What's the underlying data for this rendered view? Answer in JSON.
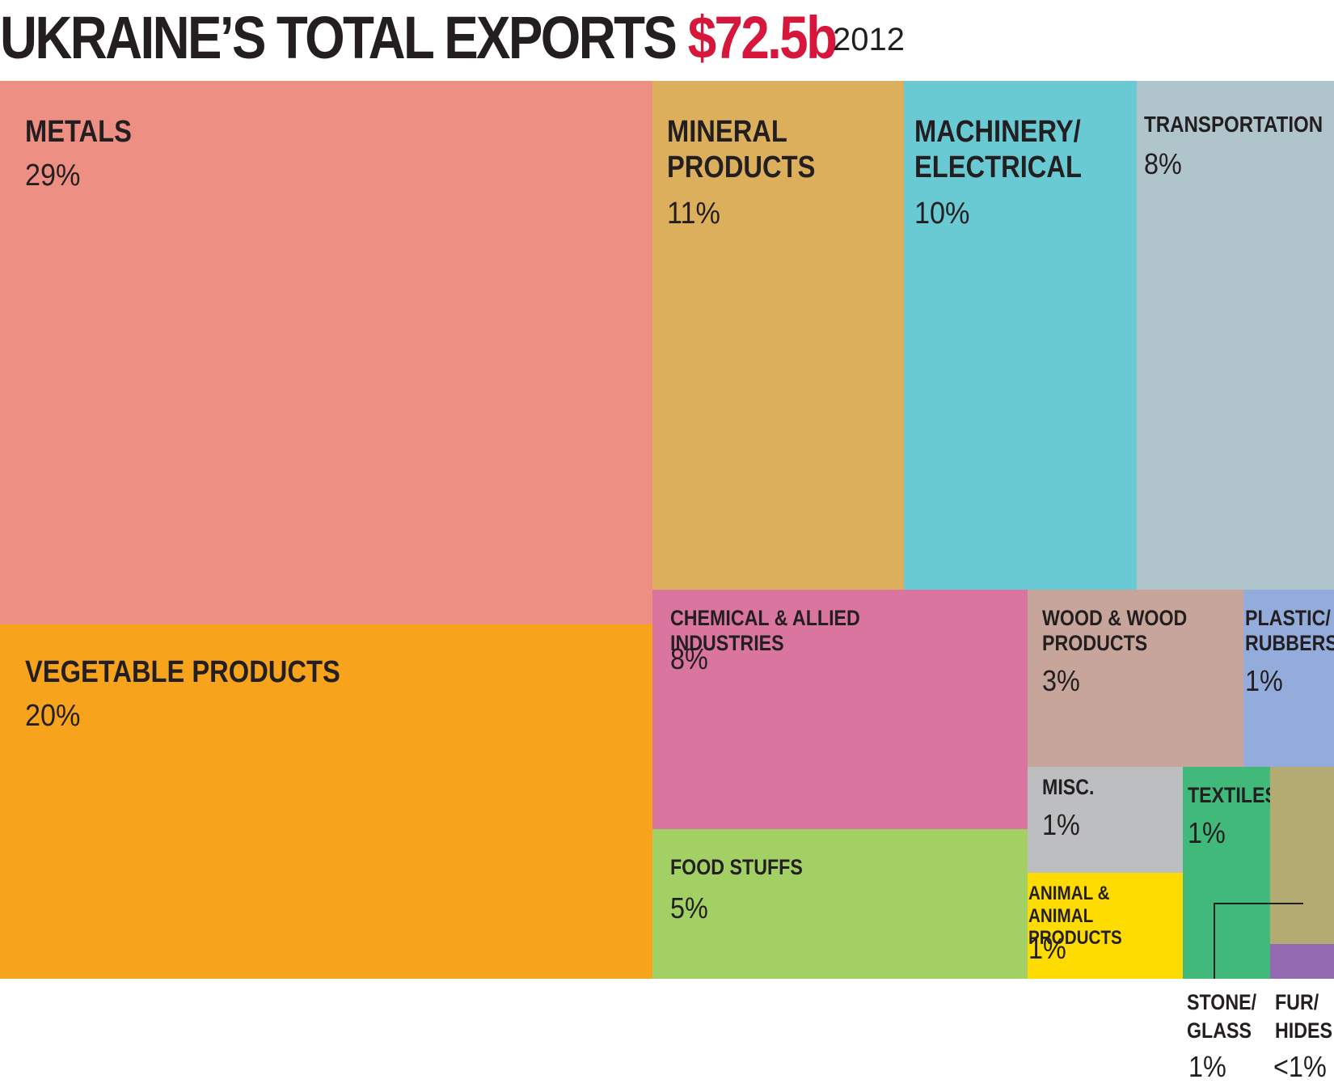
{
  "title": {
    "main": "UKRAINE’S TOTAL EXPORTS",
    "total": "$72.5b",
    "year": "2012"
  },
  "colors": {
    "title_accent": "#d7163b",
    "text": "#231f20"
  },
  "chart_data": {
    "type": "treemap",
    "title": "UKRAINE’S TOTAL EXPORTS $72.5b 2012",
    "unit": "% of total exports",
    "items": [
      {
        "id": "metals",
        "label": "METALS",
        "pct_label": "29%",
        "value": 29,
        "color": "#ed8f83"
      },
      {
        "id": "vegetable-products",
        "label": "VEGETABLE PRODUCTS",
        "pct_label": "20%",
        "value": 20,
        "color": "#f7a41c"
      },
      {
        "id": "mineral-products",
        "label": "MINERAL\nPRODUCTS",
        "pct_label": "11%",
        "value": 11,
        "color": "#dcaf5c"
      },
      {
        "id": "machinery-electrical",
        "label": "MACHINERY/\nELECTRICAL",
        "pct_label": "10%",
        "value": 10,
        "color": "#69cad3"
      },
      {
        "id": "transportation",
        "label": "TRANSPORTATION",
        "pct_label": "8%",
        "value": 8,
        "color": "#b0c4cc"
      },
      {
        "id": "chemical-allied-industries",
        "label": "CHEMICAL & ALLIED INDUSTRIES",
        "pct_label": "8%",
        "value": 8,
        "color": "#da75a0"
      },
      {
        "id": "food-stuffs",
        "label": "FOOD STUFFS",
        "pct_label": "5%",
        "value": 5,
        "color": "#a3d064"
      },
      {
        "id": "wood-products",
        "label": "WOOD & WOOD\nPRODUCTS",
        "pct_label": "3%",
        "value": 3,
        "color": "#c7a59a"
      },
      {
        "id": "plastic-rubbers",
        "label": "PLASTIC/\nRUBBERS",
        "pct_label": "1%",
        "value": 1,
        "color": "#93acdb"
      },
      {
        "id": "misc",
        "label": "MISC.",
        "pct_label": "1%",
        "value": 1,
        "color": "#bcbec0"
      },
      {
        "id": "animal-products",
        "label": "ANIMAL &\nANIMAL PRODUCTS",
        "pct_label": "1%",
        "value": 1,
        "color": "#ffdc00"
      },
      {
        "id": "textiles",
        "label": "TEXTILES",
        "pct_label": "1%",
        "value": 1,
        "color": "#41b97a"
      },
      {
        "id": "stone-glass",
        "label": "STONE/\nGLASS",
        "pct_label": "1%",
        "value": 1,
        "color": "#b4ab72"
      },
      {
        "id": "fur-hides",
        "label": "FUR/\nHIDES",
        "pct_label": "<1%",
        "value": 0.5,
        "color": "#9369b1"
      }
    ]
  }
}
